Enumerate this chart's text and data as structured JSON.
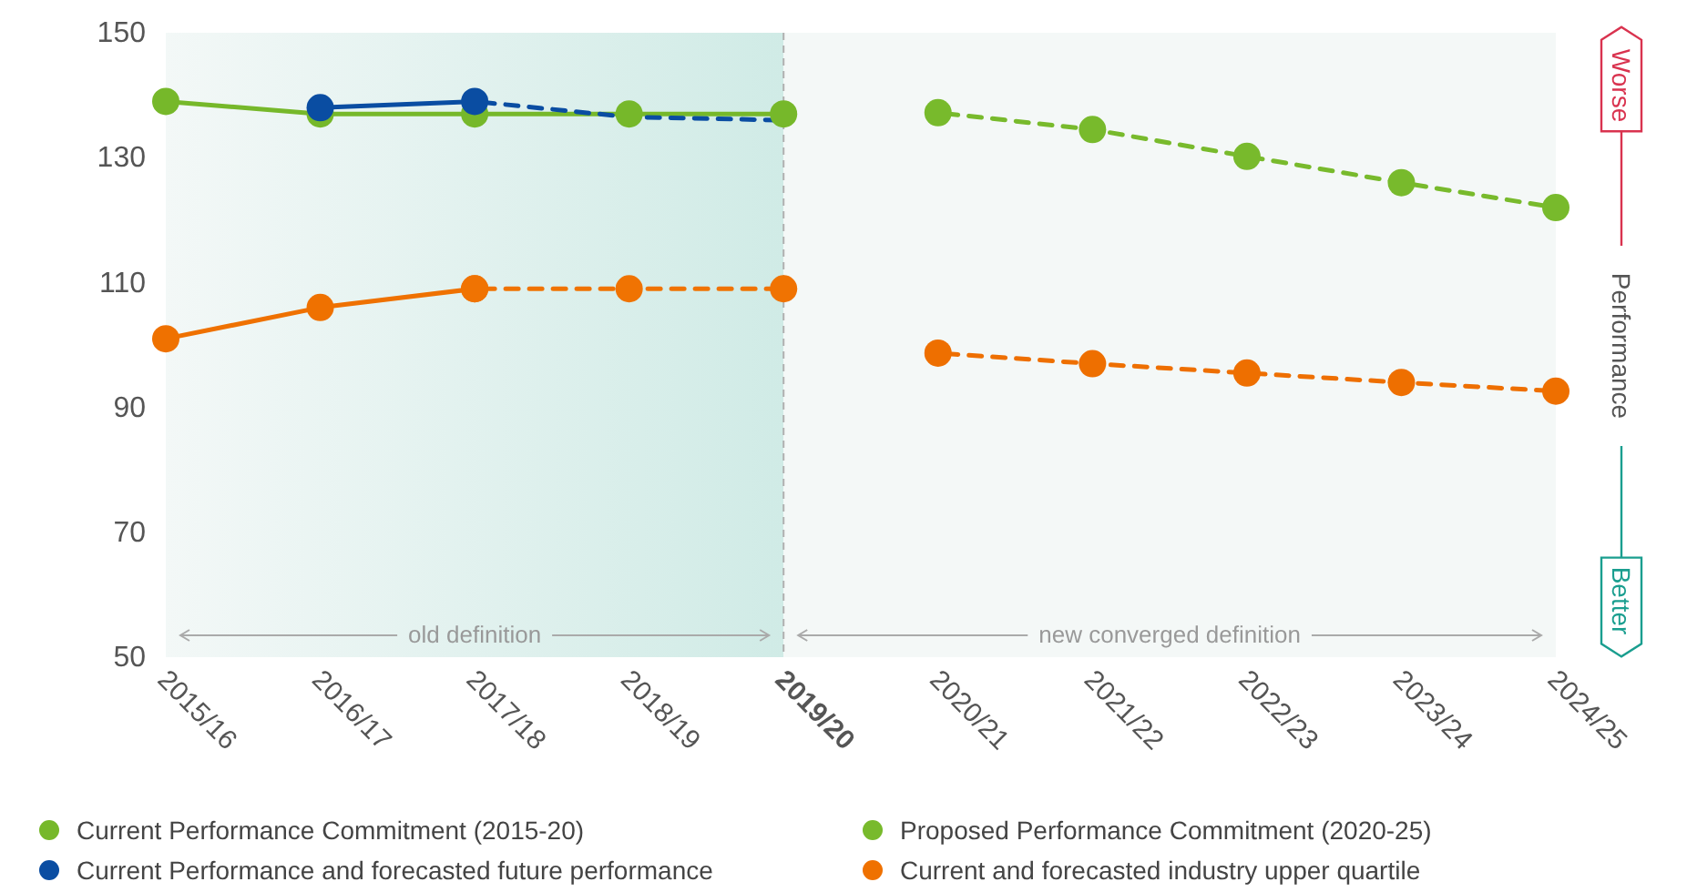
{
  "chart_data": {
    "type": "line",
    "categories": [
      "2015/16",
      "2016/17",
      "2017/18",
      "2018/19",
      "2019/20",
      "2020/21",
      "2021/22",
      "2022/23",
      "2023/24",
      "2024/25"
    ],
    "ylim": [
      50,
      150
    ],
    "yticks": [
      50,
      70,
      90,
      110,
      130,
      150
    ],
    "grid": false,
    "legend": "bottom",
    "marker": "circle",
    "series": [
      {
        "name": "Current Performance Commitment (2015-20)",
        "color": "#76b82a",
        "line_style": "solid",
        "values": [
          139,
          137,
          137,
          137,
          137,
          null,
          null,
          null,
          null,
          null
        ]
      },
      {
        "name": "Proposed Performance Commitment (2020-25)",
        "color": "#78ba2c",
        "line_style": "dashed",
        "values": [
          null,
          null,
          null,
          null,
          null,
          137.2,
          134.5,
          130.2,
          126,
          122
        ]
      },
      {
        "name": "Current Performance and forecasted future performance",
        "color": "#0a4da2",
        "line_style": "solid",
        "values": [
          null,
          138,
          139,
          null,
          null,
          null,
          null,
          null,
          null,
          null
        ]
      },
      {
        "name": "Current and forecasted industry upper quartile",
        "color": "#ef7100",
        "line_style": "solid",
        "values": [
          101,
          106,
          109,
          null,
          null,
          null,
          null,
          null,
          null,
          null
        ]
      },
      {
        "color": "#0a4da2",
        "line_style": "dashed",
        "marker": "none",
        "values": [
          null,
          null,
          139,
          136.5,
          136,
          null,
          null,
          null,
          null,
          null
        ]
      },
      {
        "color": "#f07302",
        "line_style": "dashed",
        "values": [
          null,
          null,
          109,
          109,
          109,
          null,
          null,
          null,
          null,
          null
        ]
      },
      {
        "color": "#ee6f00",
        "line_style": "dashed",
        "values": [
          null,
          null,
          null,
          null,
          null,
          98.7,
          97,
          95.5,
          94,
          92.6
        ]
      }
    ],
    "bands": [
      {
        "axis": "x",
        "from": "2015/16",
        "to": "2019/20",
        "label": "old definition",
        "color": "#d0ebe6"
      },
      {
        "axis": "x",
        "from": "2019/20",
        "to": "2024/25",
        "label": "new converged definition",
        "color": "#f4f8f7"
      }
    ],
    "ref_lines": [
      {
        "axis": "x",
        "value": "2019/20",
        "color": "#b0b0b0",
        "line_style": "dashed"
      }
    ],
    "annotations": [
      "Worse",
      "Performance",
      "Better"
    ]
  }
}
